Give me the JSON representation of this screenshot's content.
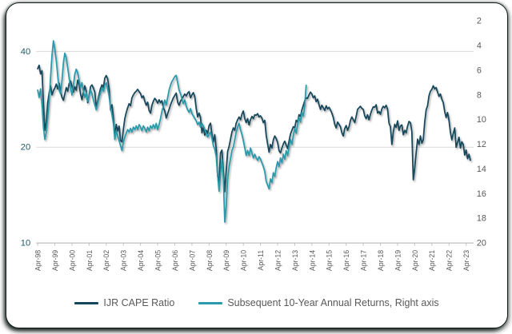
{
  "colors": {
    "cape_line": "#17465A",
    "returns_line": "#2B9AAB",
    "left_axis_labels": "#215968",
    "right_axis_labels": "#595959",
    "x_axis_labels": "#595959",
    "gridline": "#D9D9D9",
    "axis_line": "#BFBFBF",
    "legend_text": "#595959",
    "card_background": "#FFFFFF"
  },
  "chart_data": {
    "type": "line",
    "title": "",
    "xlabel": "",
    "ylabel_left": "",
    "ylabel_right": "",
    "grid": "horizontal",
    "legend_position": "bottom-center",
    "x_axis": {
      "tick_labels": [
        "Apr-98",
        "Apr-99",
        "Apr-00",
        "Apr-01",
        "Apr-02",
        "Apr-03",
        "Apr-04",
        "Apr-05",
        "Apr-06",
        "Apr-07",
        "Apr-08",
        "Apr-09",
        "Apr-10",
        "Apr-11",
        "Apr-12",
        "Apr-13",
        "Apr-14",
        "Apr-15",
        "Apr-16",
        "Apr-17",
        "Apr-18",
        "Apr-19",
        "Apr-20",
        "Apr-21",
        "Apr-22",
        "Apr-23"
      ],
      "frequency_of_data": "monthly"
    },
    "left_axis": {
      "scale": "log",
      "ticks": [
        40,
        20,
        10
      ],
      "min": 10,
      "applies_to": "IJR CAPE Ratio"
    },
    "right_axis": {
      "ticks": [
        2,
        4,
        6,
        8,
        10,
        12,
        14,
        16,
        18,
        20
      ],
      "inverted": true,
      "applies_to": "Subsequent 10-Year Annual Returns"
    },
    "series": [
      {
        "name": "IJR CAPE Ratio",
        "axis": "left",
        "color": "#17465A",
        "start": "Apr-98",
        "end": "Jul-23",
        "values": [
          35.3,
          36.2,
          34.0,
          34.8,
          27.5,
          22.6,
          24.0,
          27.6,
          29.6,
          31.2,
          29.2,
          30.1,
          30.7,
          31.6,
          30.5,
          31.8,
          29.9,
          28.7,
          28.1,
          29.4,
          30.8,
          30.0,
          31.7,
          32.3,
          31.1,
          29.8,
          31.0,
          30.2,
          32.5,
          31.5,
          29.4,
          28.2,
          29.8,
          31.2,
          30.0,
          27.6,
          29.1,
          31.0,
          31.4,
          30.7,
          29.8,
          26.7,
          27.9,
          29.3,
          30.6,
          31.4,
          30.8,
          33.0,
          33.6,
          32.8,
          30.5,
          26.2,
          27.2,
          24.8,
          21.6,
          23.6,
          22.5,
          23.3,
          21.0,
          20.8,
          22.8,
          24.6,
          25.7,
          26.6,
          27.4,
          27.0,
          28.6,
          29.2,
          29.7,
          30.0,
          30.4,
          29.9,
          29.5,
          28.6,
          29.0,
          27.9,
          27.1,
          27.7,
          26.1,
          25.6,
          27.1,
          27.9,
          28.5,
          28.1,
          27.5,
          28.2,
          27.6,
          28.0,
          26.6,
          26.0,
          24.7,
          25.5,
          26.3,
          27.2,
          27.9,
          28.6,
          29.1,
          29.6,
          27.7,
          27.1,
          27.9,
          28.4,
          28.9,
          29.4,
          29.0,
          29.6,
          29.9,
          28.6,
          29.2,
          29.7,
          28.8,
          26.5,
          24.9,
          25.6,
          24.8,
          22.2,
          23.1,
          21.8,
          22.6,
          22.1,
          23.4,
          23.8,
          22.0,
          20.8,
          21.9,
          19.8,
          16.2,
          15.6,
          19.2,
          19.6,
          16.8,
          14.5,
          16.8,
          19.4,
          20.1,
          21.2,
          22.3,
          23.0,
          22.6,
          23.8,
          24.4,
          24.9,
          24.4,
          25.4,
          26.0,
          24.6,
          23.9,
          24.6,
          23.5,
          24.4,
          25.0,
          24.6,
          25.3,
          25.2,
          25.5,
          24.9,
          25.1,
          24.7,
          23.9,
          24.3,
          21.8,
          20.5,
          19.3,
          20.4,
          19.9,
          21.1,
          21.7,
          21.3,
          20.7,
          19.5,
          19.2,
          19.9,
          20.5,
          20.9,
          20.3,
          19.8,
          20.9,
          22.0,
          22.6,
          23.2,
          23.0,
          24.3,
          24.0,
          25.3,
          25.0,
          26.2,
          27.1,
          28.0,
          28.6,
          28.5,
          29.2,
          29.8,
          29.4,
          28.6,
          29.0,
          27.8,
          28.3,
          27.2,
          26.3,
          27.1,
          26.6,
          26.1,
          27.0,
          26.4,
          26.7,
          26.2,
          25.6,
          24.8,
          23.6,
          23.0,
          24.0,
          23.6,
          23.2,
          22.2,
          21.7,
          22.9,
          23.4,
          22.6,
          23.2,
          24.3,
          24.9,
          24.4,
          23.9,
          25.0,
          26.3,
          26.6,
          26.9,
          26.5,
          26.3,
          25.1,
          24.6,
          25.3,
          24.4,
          25.4,
          26.2,
          26.8,
          26.7,
          27.2,
          25.6,
          25.9,
          25.4,
          26.4,
          26.9,
          26.6,
          27.1,
          26.3,
          23.8,
          23.2,
          20.4,
          22.3,
          23.6,
          23.1,
          24.2,
          22.6,
          23.3,
          23.5,
          21.9,
          22.6,
          22.2,
          23.3,
          24.1,
          23.9,
          22.4,
          15.8,
          17.2,
          19.2,
          21.2,
          20.4,
          21.7,
          20.6,
          21.1,
          24.0,
          26.2,
          27.0,
          29.0,
          30.0,
          30.4,
          31.2,
          30.5,
          30.8,
          29.8,
          28.9,
          29.4,
          28.3,
          27.6,
          25.9,
          24.8,
          25.7,
          24.3,
          22.3,
          21.1,
          22.1,
          23.0,
          20.0,
          20.7,
          21.5,
          19.9,
          20.8,
          20.4,
          18.9,
          19.6,
          18.4,
          19.0,
          18.2
        ]
      },
      {
        "name": "Subsequent 10-Year Annual Returns, Right axis",
        "axis": "right",
        "color": "#2B9AAB",
        "start": "Apr-98",
        "end": "Dec-13",
        "values": [
          7.6,
          8.2,
          7.5,
          8.8,
          10.6,
          11.6,
          11.0,
          9.8,
          8.4,
          6.6,
          4.8,
          3.6,
          4.3,
          5.2,
          6.4,
          7.6,
          7.9,
          6.8,
          5.4,
          4.6,
          5.0,
          5.8,
          6.6,
          7.4,
          8.0,
          7.2,
          6.3,
          5.9,
          6.2,
          6.8,
          7.4,
          7.0,
          7.7,
          8.2,
          7.8,
          8.5,
          8.1,
          7.6,
          7.9,
          8.4,
          8.8,
          9.2,
          8.7,
          8.2,
          7.8,
          7.4,
          7.7,
          7.2,
          7.0,
          7.5,
          8.1,
          9.0,
          9.6,
          10.3,
          11.6,
          10.9,
          11.3,
          11.7,
          12.1,
          12.5,
          11.8,
          11.4,
          11.1,
          10.8,
          11.0,
          10.7,
          11.0,
          10.6,
          10.8,
          10.5,
          10.8,
          10.4,
          10.6,
          10.9,
          10.5,
          10.7,
          11.0,
          10.6,
          10.9,
          10.5,
          10.7,
          10.4,
          10.7,
          10.3,
          10.8,
          10.4,
          9.9,
          9.3,
          8.9,
          8.4,
          8.8,
          8.2,
          7.6,
          7.2,
          6.9,
          6.7,
          6.5,
          6.4,
          7.0,
          7.6,
          7.9,
          8.3,
          8.7,
          8.4,
          8.9,
          9.2,
          9.4,
          9.1,
          9.5,
          9.7,
          9.9,
          10.1,
          10.4,
          10.2,
          10.6,
          10.3,
          10.5,
          10.8,
          11.1,
          11.4,
          11.2,
          11.0,
          11.5,
          12.1,
          12.4,
          13.0,
          14.5,
          15.8,
          14.4,
          13.2,
          14.8,
          18.3,
          17.0,
          14.8,
          13.8,
          13.2,
          12.5,
          12.2,
          11.6,
          11.0,
          10.6,
          10.3,
          10.8,
          11.2,
          11.7,
          12.3,
          12.9,
          12.5,
          12.9,
          12.3,
          12.7,
          13.1,
          12.8,
          13.1,
          13.3,
          13.0,
          13.2,
          13.5,
          13.8,
          14.2,
          15.0,
          15.3,
          15.6,
          14.8,
          15.1,
          14.3,
          14.6,
          13.9,
          13.4,
          13.8,
          13.1,
          13.5,
          12.8,
          13.2,
          12.5,
          12.9,
          12.2,
          11.6,
          12.0,
          11.3,
          10.7,
          11.1,
          10.4,
          9.8,
          10.2,
          9.4,
          9.7,
          8.8,
          7.2
        ]
      }
    ],
    "legend": [
      "IJR CAPE Ratio",
      "Subsequent 10-Year Annual Returns, Right axis"
    ]
  }
}
